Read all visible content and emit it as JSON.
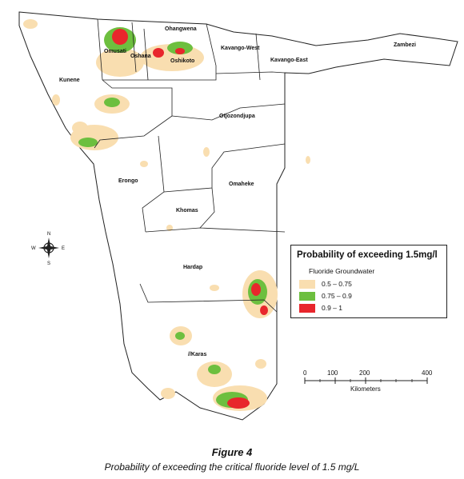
{
  "regions": {
    "kunene": "Kunene",
    "omusati": "Omusati",
    "oshana": "Oshana",
    "ohangwena": "Ohangwena",
    "oshikoto": "Oshikoto",
    "kavango_west": "Kavango-West",
    "kavango_east": "Kavango-East",
    "zambezi": "Zambezi",
    "otjozondjupa": "Otjozondjupa",
    "erongo": "Erongo",
    "omaheke": "Omaheke",
    "khomas": "Khomas",
    "hardap": "Hardap",
    "karas": "//Karas"
  },
  "legend": {
    "title": "Probability of exceeding 1.5mg/l",
    "subtitle": "Fluoride Groundwater",
    "items": [
      {
        "label": "0.5 – 0.75",
        "color": "#f9deb0"
      },
      {
        "label": "0.75 – 0.9",
        "color": "#6dbf3f"
      },
      {
        "label": "0.9 – 1",
        "color": "#e8262c"
      }
    ]
  },
  "scale_bar": {
    "ticks": [
      "0",
      "100",
      "200",
      "400"
    ],
    "unit": "Kilometers"
  },
  "compass": {
    "n": "N",
    "s": "S",
    "e": "E",
    "w": "W"
  },
  "caption": {
    "figure": "Figure 4",
    "text": "Probability of exceeding the critical fluoride level of 1.5 mg/L"
  },
  "colors": {
    "low": "#f9deb0",
    "mid": "#6dbf3f",
    "high": "#e8262c",
    "border": "#222222"
  }
}
